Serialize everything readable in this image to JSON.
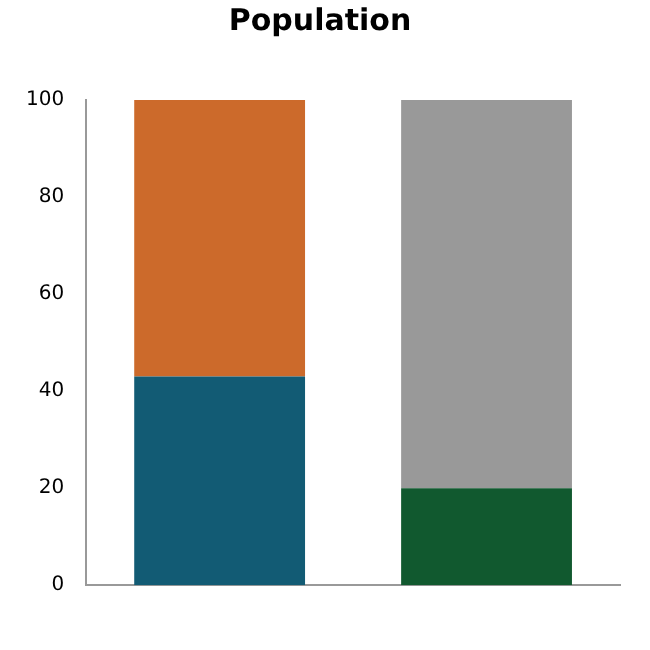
{
  "chart_data": {
    "type": "bar",
    "title": "Population",
    "categories": [
      null,
      null
    ],
    "stacked": true,
    "series": [
      {
        "colors": [
          "#125b74",
          "#11592f"
        ],
        "values": [
          43,
          20
        ]
      },
      {
        "colors": [
          "#cc6a2b",
          "#999999"
        ],
        "values": [
          57,
          80
        ]
      }
    ],
    "ylim": [
      0,
      100
    ],
    "yticks": [
      0,
      20,
      40,
      60,
      80,
      100
    ],
    "grid": false,
    "legend": false
  }
}
